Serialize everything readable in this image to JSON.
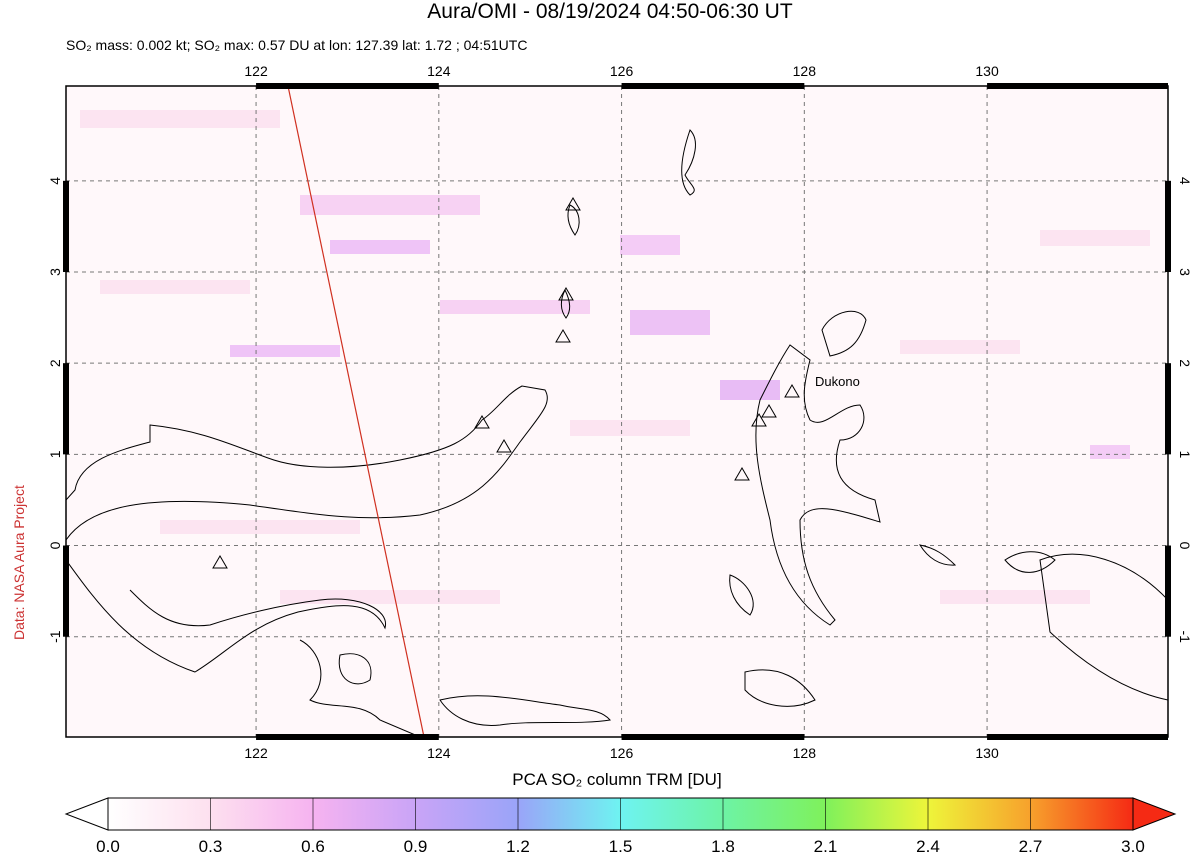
{
  "title": "Aura/OMI - 08/19/2024 04:50-06:30 UT",
  "subtitle": "SO₂ mass: 0.002 kt; SO₂ max: 0.57 DU at lon: 127.39 lat: 1.72 ; 04:51UTC",
  "side_label": "Data: NASA Aura Project",
  "map": {
    "lonlim": [
      119.92,
      131.98
    ],
    "latlim": [
      -2.1,
      5.04
    ],
    "lonticks": [
      122,
      124,
      126,
      128,
      130
    ],
    "latticks": [
      -1,
      0,
      1,
      2,
      3,
      4
    ],
    "annotations": [
      "Dukono"
    ]
  },
  "colorbar": {
    "title": "PCA SO₂ column TRM [DU]",
    "range": [
      0,
      3
    ],
    "ticks": [
      {
        "value": 0,
        "label": "0.0"
      },
      {
        "value": 0.3,
        "label": "0.3"
      },
      {
        "value": 0.6,
        "label": "0.6"
      },
      {
        "value": 0.9,
        "label": "0.9"
      },
      {
        "value": 1.2,
        "label": "1.2"
      },
      {
        "value": 1.5,
        "label": "1.5"
      },
      {
        "value": 1.8,
        "label": "1.8"
      },
      {
        "value": 2.1,
        "label": "2.1"
      },
      {
        "value": 2.4,
        "label": "2.4"
      },
      {
        "value": 2.7,
        "label": "2.7"
      },
      {
        "value": 3.0,
        "label": "3.0"
      }
    ]
  }
}
